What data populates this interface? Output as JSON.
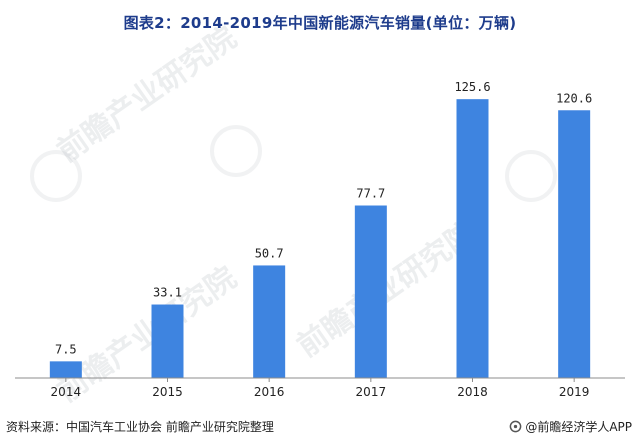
{
  "title": "图表2：2014-2019年中国新能源汽车销量(单位：万辆)",
  "source": "资料来源：中国汽车工业协会 前瞻产业研究院整理",
  "brand": "@前瞻经济学人APP",
  "watermark": "前瞻产业研究院",
  "colors": {
    "bar": "#3e84e0",
    "axis": "#8c8c8c",
    "label": "#222222",
    "title": "#1e3c8c"
  },
  "chart_data": {
    "type": "bar",
    "title": "图表2：2014-2019年中国新能源汽车销量(单位：万辆)",
    "xlabel": "",
    "ylabel": "",
    "categories": [
      "2014",
      "2015",
      "2016",
      "2017",
      "2018",
      "2019"
    ],
    "values": [
      7.5,
      33.1,
      50.7,
      77.7,
      125.6,
      120.6
    ],
    "value_labels": [
      "7.5",
      "33.1",
      "50.7",
      "77.7",
      "125.6",
      "120.6"
    ],
    "ylim": [
      0,
      150
    ],
    "grid": false,
    "legend": "none"
  }
}
